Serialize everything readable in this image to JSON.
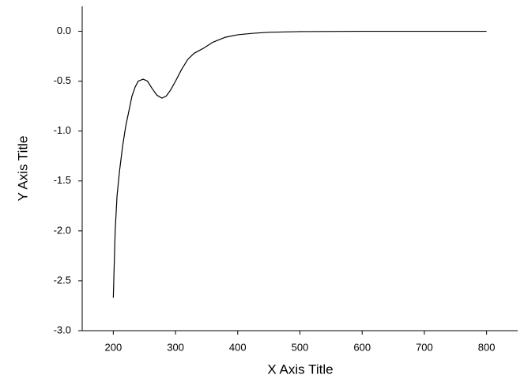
{
  "chart_data": {
    "type": "line",
    "x_label": "X Axis Title",
    "y_label": "Y Axis Title",
    "x": [
      200,
      203,
      206,
      210,
      215,
      220,
      225,
      230,
      235,
      240,
      248,
      255,
      262,
      270,
      278,
      285,
      292,
      300,
      310,
      320,
      330,
      345,
      360,
      380,
      400,
      425,
      450,
      500,
      600,
      700,
      800
    ],
    "series": [
      {
        "color": "#000000",
        "values": [
          -2.67,
          -2.0,
          -1.65,
          -1.4,
          -1.15,
          -0.95,
          -0.8,
          -0.65,
          -0.56,
          -0.5,
          -0.48,
          -0.5,
          -0.57,
          -0.64,
          -0.67,
          -0.65,
          -0.59,
          -0.5,
          -0.38,
          -0.28,
          -0.22,
          -0.17,
          -0.11,
          -0.06,
          -0.035,
          -0.02,
          -0.01,
          -0.003,
          0,
          0,
          0
        ]
      }
    ],
    "xlim": [
      150,
      850
    ],
    "ylim": [
      -3.0,
      0.25
    ],
    "xticks": [
      200,
      300,
      400,
      500,
      600,
      700,
      800
    ],
    "yticks": [
      {
        "value": -3.0,
        "label": "-3.0"
      },
      -2.5,
      {
        "value": -2.0,
        "label": "-2.0"
      },
      -1.5,
      {
        "value": -1.0,
        "label": "-1.0"
      },
      -0.5,
      {
        "value": 0.0,
        "label": "0.0"
      }
    ]
  }
}
